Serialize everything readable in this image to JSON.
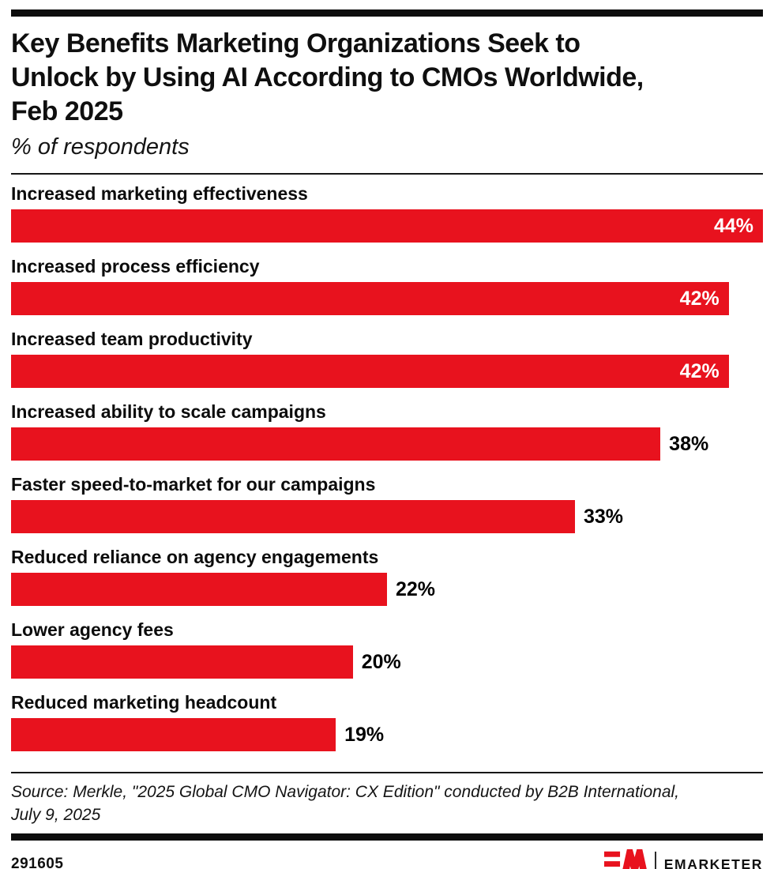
{
  "title": {
    "lines": [
      "Key Benefits Marketing Organizations Seek to",
      "Unlock by Using AI According to CMOs Worldwide,",
      "Feb 2025"
    ]
  },
  "subtitle": "% of respondents",
  "chart_data": {
    "type": "bar",
    "orientation": "horizontal",
    "title": "Key Benefits Marketing Organizations Seek to Unlock by Using AI According to CMOs Worldwide, Feb 2025",
    "subtitle": "% of respondents",
    "categories": [
      "Increased marketing effectiveness",
      "Increased process efficiency",
      "Increased team productivity",
      "Increased ability to scale campaigns",
      "Faster speed-to-market for our campaigns",
      "Reduced reliance on agency engagements",
      "Lower agency fees",
      "Reduced marketing headcount"
    ],
    "values": [
      44,
      42,
      42,
      38,
      33,
      22,
      20,
      19
    ],
    "unit": "%",
    "xlim": [
      0,
      44
    ],
    "grid": false,
    "legend": false,
    "bar_color": "#E8121E",
    "value_label_inside_color": "#FFFFFF",
    "value_label_outside_color": "#000000"
  },
  "source": {
    "lines": [
      "Source: Merkle, \"2025 Global CMO Navigator: CX Edition\" conducted by B2B International,",
      "July 9, 2025"
    ]
  },
  "footer": {
    "chart_id": "291605",
    "brand_wordmark": "EMARKETER"
  },
  "colors": {
    "accent_red": "#E8121E",
    "rule_black": "#0D0D0D",
    "text_black": "#0F0F0F"
  }
}
